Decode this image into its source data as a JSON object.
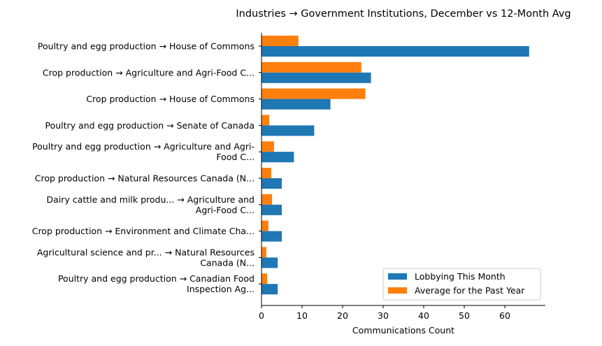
{
  "chart_data": {
    "type": "bar",
    "orientation": "horizontal",
    "title": "Industries → Government Institutions, December vs 12-Month Avg",
    "xlabel": "Communications Count",
    "ylabel": "",
    "xlim": [
      0,
      69
    ],
    "xticks": [
      "0",
      "10",
      "20",
      "30",
      "40",
      "50",
      "60"
    ],
    "grid": false,
    "legend_position": "bottom-right",
    "categories": [
      [
        "Poultry and egg production → House of Commons"
      ],
      [
        "Crop production → Agriculture and Agri-Food C..."
      ],
      [
        "Crop production → House of Commons"
      ],
      [
        "Poultry and egg production → Senate of Canada"
      ],
      [
        "Poultry and egg production → Agriculture and Agri-",
        "Food C..."
      ],
      [
        "Crop production → Natural Resources Canada (N..."
      ],
      [
        "Dairy cattle and milk produ... → Agriculture and",
        "Agri-Food C..."
      ],
      [
        "Crop production → Environment and Climate Cha..."
      ],
      [
        "Agricultural science and pr... → Natural Resources",
        "Canada (N..."
      ],
      [
        "Poultry and egg production → Canadian Food",
        "Inspection Ag..."
      ]
    ],
    "series": [
      {
        "name": "Lobbying This Month",
        "color": "#1f77b4",
        "values": [
          66,
          27,
          17,
          13,
          8,
          5,
          5,
          5,
          4,
          4
        ]
      },
      {
        "name": "Average for the Past Year",
        "color": "#ff7f0e",
        "values": [
          9.1,
          24.6,
          25.6,
          1.9,
          3.1,
          2.4,
          2.6,
          1.7,
          1.2,
          1.4
        ]
      }
    ]
  }
}
